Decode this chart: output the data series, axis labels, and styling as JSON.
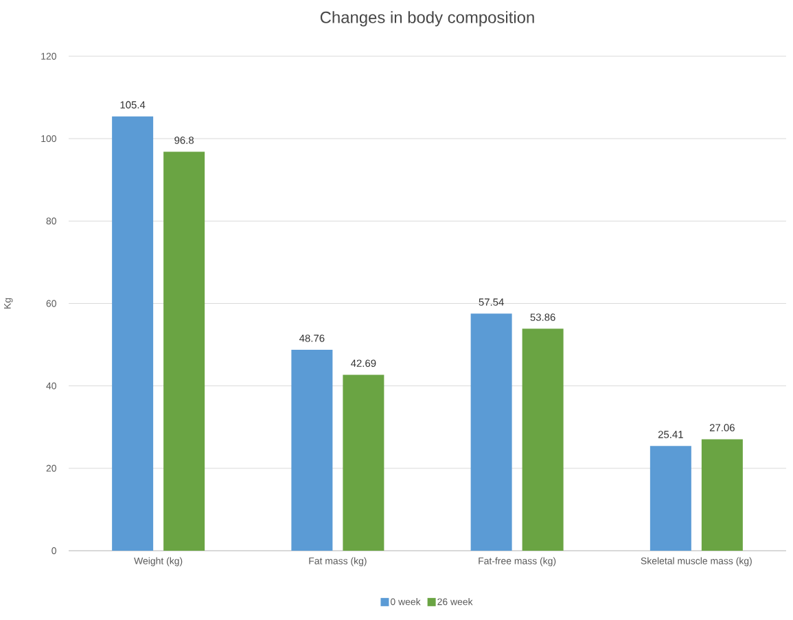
{
  "chart_data": {
    "type": "bar",
    "title": "Changes in body composition",
    "ylabel": "Kg",
    "categories": [
      "Weight (kg)",
      "Fat mass (kg)",
      "Fat-free mass (kg)",
      "Skeletal muscle mass (kg)"
    ],
    "series": [
      {
        "name": "0 week",
        "color": "#5b9bd5",
        "values": [
          105.4,
          48.76,
          57.54,
          25.41
        ]
      },
      {
        "name": "26 week",
        "color": "#6aa443",
        "values": [
          96.8,
          42.69,
          53.86,
          27.06
        ]
      }
    ],
    "ylim": [
      0,
      120
    ],
    "yticks": [
      0,
      20,
      40,
      60,
      80,
      100,
      120
    ],
    "grid": "y",
    "legend": "bottom",
    "data_labels": true
  }
}
